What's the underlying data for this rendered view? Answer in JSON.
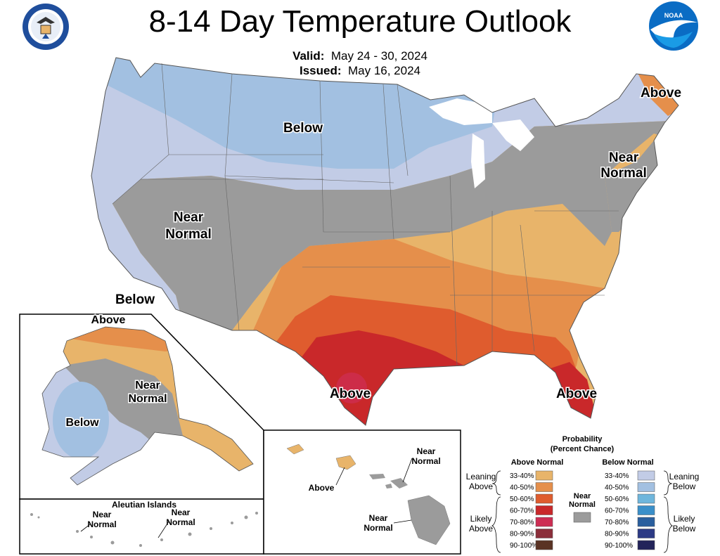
{
  "title": "8-14 Day Temperature Outlook",
  "valid_label": "Valid:",
  "valid_value": "May 24 - 30, 2024",
  "issued_label": "Issued:",
  "issued_value": "May 16, 2024",
  "logos": {
    "left": "commerce-seal",
    "right": "noaa-logo",
    "noaa_text": "NOAA"
  },
  "conus_labels": {
    "below_north": "Below",
    "above_ne": "Above",
    "near_normal_ne_1": "Near",
    "near_normal_ne_2": "Normal",
    "near_normal_west_1": "Near",
    "near_normal_west_2": "Normal",
    "below_west": "Below",
    "above_tx": "Above",
    "above_fl": "Above"
  },
  "alaska_labels": {
    "above": "Above",
    "near_1": "Near",
    "near_2": "Normal",
    "below": "Below"
  },
  "aleutian": {
    "title": "Aleutian Islands",
    "near_a_1": "Near",
    "near_a_2": "Normal",
    "near_b_1": "Near",
    "near_b_2": "Normal"
  },
  "hawaii": {
    "near_top_1": "Near",
    "near_top_2": "Normal",
    "above": "Above",
    "near_bottom_1": "Near",
    "near_bottom_2": "Normal"
  },
  "legend": {
    "title_1": "Probability",
    "title_2": "(Percent Chance)",
    "above_header": "Above Normal",
    "below_header": "Below Normal",
    "near_1": "Near",
    "near_2": "Normal",
    "leaning_above_1": "Leaning",
    "leaning_above_2": "Above",
    "likely_above_1": "Likely",
    "likely_above_2": "Above",
    "leaning_below_1": "Leaning",
    "leaning_below_2": "Below",
    "likely_below_1": "Likely",
    "likely_below_2": "Below",
    "above": [
      {
        "range": "33-40%",
        "color": "#e8b46a"
      },
      {
        "range": "40-50%",
        "color": "#e58f4b"
      },
      {
        "range": "50-60%",
        "color": "#df5c2e"
      },
      {
        "range": "60-70%",
        "color": "#c9282a"
      },
      {
        "range": "70-80%",
        "color": "#cd2d53"
      },
      {
        "range": "80-90%",
        "color": "#8b2e3a"
      },
      {
        "range": "90-100%",
        "color": "#5a3324"
      }
    ],
    "below": [
      {
        "range": "33-40%",
        "color": "#c2cce6"
      },
      {
        "range": "40-50%",
        "color": "#a2c0e1"
      },
      {
        "range": "50-60%",
        "color": "#6fb6dc"
      },
      {
        "range": "60-70%",
        "color": "#3a8fc9"
      },
      {
        "range": "70-80%",
        "color": "#2a5f9e"
      },
      {
        "range": "80-90%",
        "color": "#2c3a85"
      },
      {
        "range": "90-100%",
        "color": "#23245a"
      }
    ],
    "near_color": "#9b9b9b"
  }
}
